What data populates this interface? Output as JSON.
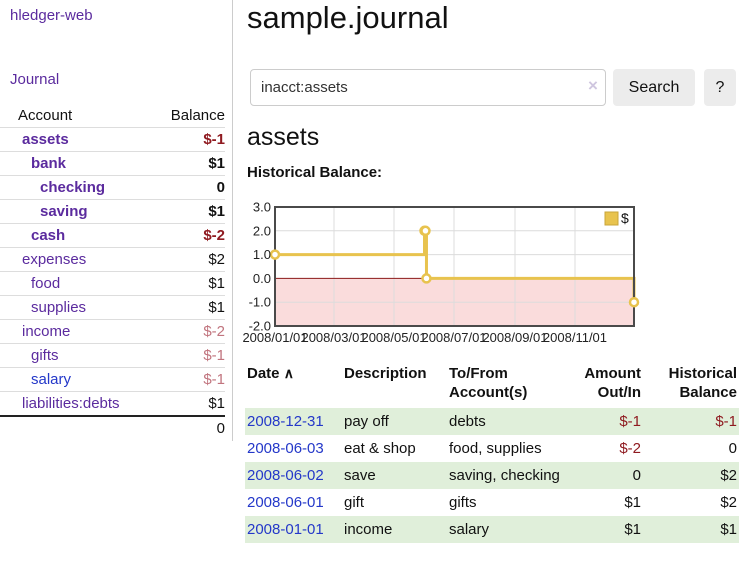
{
  "sidebar": {
    "app_title": "hledger-web",
    "journal_label": "Journal",
    "accounts_table": {
      "account_header": "Account",
      "balance_header": "Balance",
      "rows": [
        {
          "name": "assets",
          "balance": "$-1",
          "indent": 0,
          "bold": true,
          "name_class": "purple",
          "balance_class": "neg-strong"
        },
        {
          "name": "bank",
          "balance": "$1",
          "indent": 1,
          "bold": true,
          "name_class": "purple",
          "balance_class": ""
        },
        {
          "name": "checking",
          "balance": "0",
          "indent": 2,
          "bold": true,
          "name_class": "purple",
          "balance_class": ""
        },
        {
          "name": "saving",
          "balance": "$1",
          "indent": 2,
          "bold": true,
          "name_class": "purple",
          "balance_class": ""
        },
        {
          "name": "cash",
          "balance": "$-2",
          "indent": 1,
          "bold": true,
          "name_class": "purple",
          "balance_class": "neg-strong"
        },
        {
          "name": "expenses",
          "balance": "$2",
          "indent": 0,
          "bold": false,
          "name_class": "purple",
          "balance_class": ""
        },
        {
          "name": "food",
          "balance": "$1",
          "indent": 1,
          "bold": false,
          "name_class": "purple",
          "balance_class": ""
        },
        {
          "name": "supplies",
          "balance": "$1",
          "indent": 1,
          "bold": false,
          "name_class": "purple",
          "balance_class": ""
        },
        {
          "name": "income",
          "balance": "$-2",
          "indent": 0,
          "bold": false,
          "name_class": "purple",
          "balance_class": "neg-soft"
        },
        {
          "name": "gifts",
          "balance": "$-1",
          "indent": 1,
          "bold": false,
          "name_class": "purple",
          "balance_class": "neg-soft"
        },
        {
          "name": "salary",
          "balance": "$-1",
          "indent": 1,
          "bold": false,
          "name_class": "blue",
          "balance_class": "neg-soft"
        },
        {
          "name": "liabilities:debts",
          "balance": "$1",
          "indent": 0,
          "bold": false,
          "name_class": "purple",
          "balance_class": ""
        }
      ],
      "total": "0"
    }
  },
  "main": {
    "title": "sample.journal",
    "search": {
      "value": "inacct:assets",
      "clear_icon": "×",
      "search_label": "Search",
      "help_label": "?"
    },
    "account_heading": "assets",
    "chart_title": "Historical Balance:",
    "register": {
      "headers": {
        "date": "Date",
        "sort_icon": "∧",
        "description": "Description",
        "accounts": "To/From Account(s)",
        "amount": "Amount Out/In",
        "balance": "Historical Balance"
      },
      "rows": [
        {
          "date": "2008-12-31",
          "description": "pay off",
          "accounts": "debts",
          "amount": "$-1",
          "amount_class": "neg-strong",
          "balance": "$-1",
          "balance_class": "neg-strong"
        },
        {
          "date": "2008-06-03",
          "description": "eat & shop",
          "accounts": "food, supplies",
          "amount": "$-2",
          "amount_class": "neg-strong",
          "balance": "0",
          "balance_class": ""
        },
        {
          "date": "2008-06-02",
          "description": "save",
          "accounts": "saving, checking",
          "amount": "0",
          "amount_class": "",
          "balance": "$2",
          "balance_class": ""
        },
        {
          "date": "2008-06-01",
          "description": "gift",
          "accounts": "gifts",
          "amount": "$1",
          "amount_class": "",
          "balance": "$2",
          "balance_class": ""
        },
        {
          "date": "2008-01-01",
          "description": "income",
          "accounts": "salary",
          "amount": "$1",
          "amount_class": "",
          "balance": "$1",
          "balance_class": ""
        }
      ]
    }
  },
  "chart_data": {
    "type": "line",
    "style": "step",
    "title": "Historical Balance:",
    "series": [
      {
        "name": "$",
        "color": "#e8c34e",
        "points": [
          [
            "2008-01-01",
            1
          ],
          [
            "2008-06-01",
            2
          ],
          [
            "2008-06-02",
            2
          ],
          [
            "2008-06-03",
            0
          ],
          [
            "2008-12-31",
            -1
          ]
        ]
      }
    ],
    "x_range": [
      "2008-01-01",
      "2008-12-31"
    ],
    "x_ticks": [
      {
        "date": "2008-01-01",
        "label": "2008/01/01"
      },
      {
        "date": "2008-03-01",
        "label": "2008/03/01"
      },
      {
        "date": "2008-05-01",
        "label": "2008/05/01"
      },
      {
        "date": "2008-07-01",
        "label": "2008/07/01"
      },
      {
        "date": "2008-09-01",
        "label": "2008/09/01"
      },
      {
        "date": "2008-11-01",
        "label": "2008/11/01"
      }
    ],
    "y_ticks": [
      {
        "v": 3,
        "label": "3.0"
      },
      {
        "v": 2,
        "label": "2.0"
      },
      {
        "v": 1,
        "label": "1.0"
      },
      {
        "v": 0,
        "label": "0.0"
      },
      {
        "v": -1,
        "label": "-1.0"
      },
      {
        "v": -2,
        "label": "-2.0"
      }
    ],
    "ylim": [
      -2,
      3
    ],
    "grid": true,
    "legend_position": "top-right",
    "negative_fill": "#fadcdc",
    "zero_line_color": "#8b1a1a",
    "grid_color": "#dcdcdc",
    "border_color": "#4a4a4a"
  }
}
